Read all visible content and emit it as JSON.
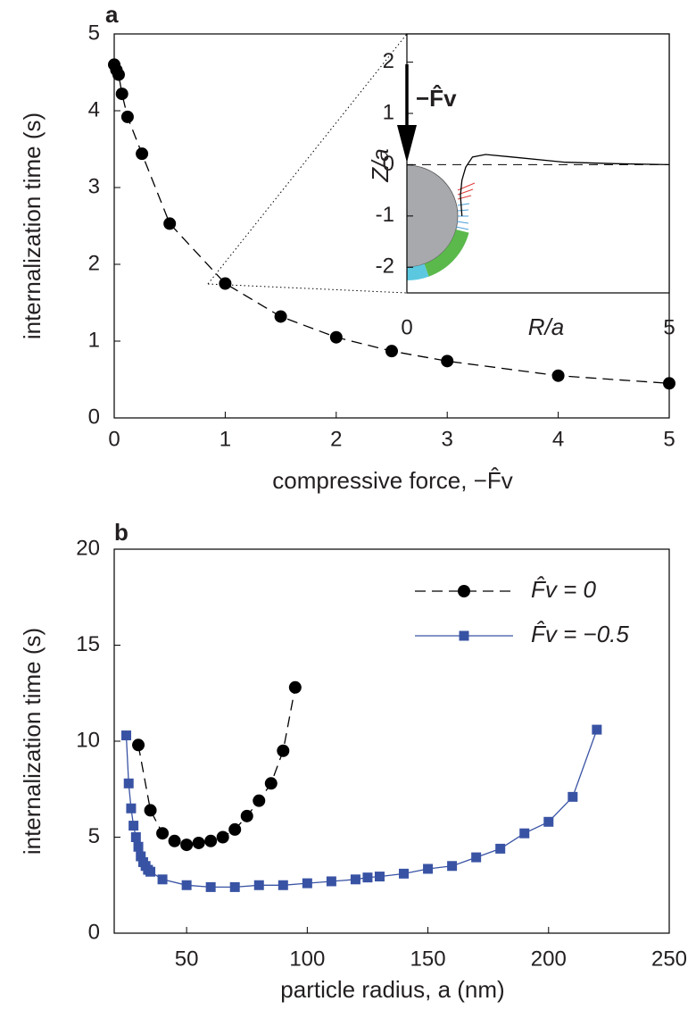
{
  "chart_data": [
    {
      "type": "line",
      "panel_label": "a",
      "xlabel": "compressive force, −F̂v",
      "ylabel": "internalization time (s)",
      "x": [
        0,
        0.02,
        0.04,
        0.07,
        0.12,
        0.25,
        0.5,
        1,
        1.5,
        2,
        2.5,
        3,
        4,
        5
      ],
      "series": [
        {
          "color": "#000000",
          "marker": "circle",
          "line_style": "dashed",
          "values": [
            4.6,
            4.53,
            4.47,
            4.22,
            3.92,
            3.44,
            2.53,
            1.75,
            1.32,
            1.05,
            0.87,
            0.74,
            0.55,
            0.45
          ]
        }
      ],
      "xlim": [
        0,
        5
      ],
      "ylim": [
        0,
        5
      ],
      "xticks": [
        0,
        1,
        2,
        3,
        4,
        5
      ],
      "yticks": [
        0,
        1,
        2,
        3,
        4,
        5
      ]
    },
    {
      "type": "line",
      "xlabel": "R/a",
      "ylabel": "Z/a",
      "annotation": "−F̂v",
      "x": [
        1.05,
        1.02,
        1.05,
        1.12,
        1.25,
        1.5,
        2,
        3,
        4,
        5
      ],
      "series": [
        {
          "color": "#000000",
          "marker": "none",
          "line_style": "solid",
          "values": [
            -1.0,
            -0.6,
            -0.3,
            -0.05,
            0.15,
            0.2,
            0.15,
            0.05,
            0.02,
            0
          ]
        }
      ],
      "xlim": [
        0,
        5
      ],
      "ylim": [
        -2.5,
        2.55
      ],
      "xticks": [
        0,
        5
      ],
      "yticks": [
        -2,
        -1,
        0,
        1,
        2
      ],
      "zero_line": true
    },
    {
      "type": "line",
      "panel_label": "b",
      "xlabel": "particle radius, a (nm)",
      "ylabel": "internalization time (s)",
      "legend": "upper right",
      "series": [
        {
          "name": "F̂v = 0",
          "color": "#000000",
          "marker": "circle",
          "line_style": "dashed",
          "x": [
            30,
            35,
            40,
            45,
            50,
            55,
            60,
            65,
            70,
            75,
            80,
            85,
            90,
            95
          ],
          "values": [
            9.8,
            6.4,
            5.2,
            4.8,
            4.6,
            4.7,
            4.8,
            5.0,
            5.4,
            6.1,
            6.9,
            7.8,
            9.5,
            12.8
          ]
        },
        {
          "name": "F̂v = −0.5",
          "color": "#3953a4",
          "marker": "square",
          "line_style": "solid",
          "x": [
            25,
            26,
            27,
            28,
            29,
            30,
            31,
            32,
            33,
            34,
            35,
            40,
            50,
            60,
            70,
            80,
            90,
            100,
            110,
            120,
            125,
            130,
            140,
            150,
            160,
            170,
            180,
            190,
            200,
            210,
            220
          ],
          "values": [
            10.3,
            7.8,
            6.5,
            5.6,
            5.0,
            4.5,
            4.0,
            3.7,
            3.5,
            3.3,
            3.2,
            2.8,
            2.5,
            2.4,
            2.4,
            2.5,
            2.5,
            2.6,
            2.7,
            2.8,
            2.9,
            2.95,
            3.1,
            3.35,
            3.5,
            3.95,
            4.4,
            5.2,
            5.8,
            7.1,
            10.6
          ]
        }
      ],
      "xlim": [
        20,
        250
      ],
      "ylim": [
        0,
        20
      ],
      "xticks": [
        50,
        100,
        150,
        200,
        250
      ],
      "yticks": [
        0,
        5,
        10,
        15,
        20
      ]
    }
  ]
}
